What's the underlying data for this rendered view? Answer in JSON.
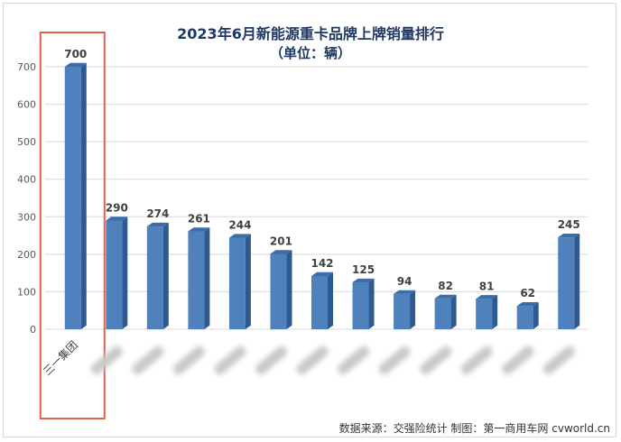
{
  "chart_data": {
    "type": "bar",
    "title": "2023年6月新能源重卡品牌上牌销量排行",
    "subtitle": "（单位：辆）",
    "categories": [
      "三一集团",
      "",
      "",
      "",
      "",
      "",
      "",
      "",
      "",
      "",
      "",
      "",
      ""
    ],
    "values": [
      700,
      290,
      274,
      261,
      244,
      201,
      142,
      125,
      94,
      82,
      81,
      62,
      245
    ],
    "ylim": [
      0,
      700
    ],
    "yticks": [
      "0",
      "100",
      "200",
      "300",
      "400",
      "500",
      "600",
      "700"
    ],
    "grid": true,
    "bar_color": "#4f81bd",
    "highlight_color": "#e06050",
    "highlight_index": 0
  },
  "footer": "数据来源：交强险统计  制图：第一商用车网 cvworld.cn"
}
